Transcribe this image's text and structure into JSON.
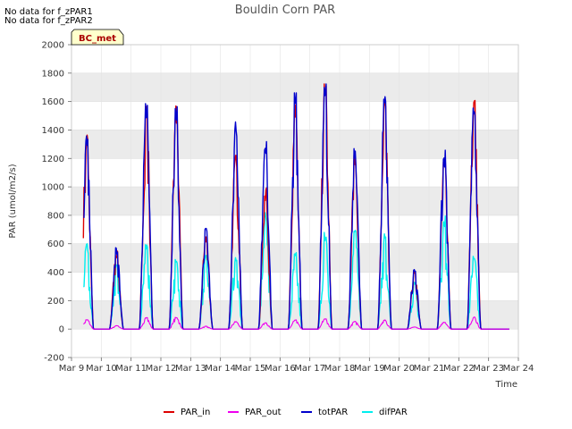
{
  "notes": [
    "No data for f_zPAR1",
    "No data for f_zPAR2"
  ],
  "badge": "BC_met",
  "colors": {
    "PAR_in": "#dd0000",
    "PAR_out": "#ee00ee",
    "totPAR": "#0000cc",
    "difPAR": "#00eeee",
    "band": "#ebebeb",
    "badge_bg": "#ffffcc",
    "badge_text": "#aa0000"
  },
  "chart_data": {
    "type": "line",
    "title": "Bouldin Corn PAR",
    "xlabel": "Time",
    "ylabel": "PAR (umol/m2/s)",
    "xlim": [
      9,
      24
    ],
    "ylim": [
      -200,
      2000
    ],
    "yticks": [
      -200,
      0,
      200,
      400,
      600,
      800,
      1000,
      1200,
      1400,
      1600,
      1800,
      2000
    ],
    "xticks": [
      {
        "value": 9,
        "label": "Mar 9"
      },
      {
        "value": 10,
        "label": "Mar 10"
      },
      {
        "value": 11,
        "label": "Mar 11"
      },
      {
        "value": 12,
        "label": "Mar 12"
      },
      {
        "value": 13,
        "label": "Mar 13"
      },
      {
        "value": 14,
        "label": "Mar 14"
      },
      {
        "value": 15,
        "label": "Mar 15"
      },
      {
        "value": 16,
        "label": "Mar 16"
      },
      {
        "value": 17,
        "label": "Mar 17"
      },
      {
        "value": 18,
        "label": "Mar 18"
      },
      {
        "value": 19,
        "label": "Mar 19"
      },
      {
        "value": 20,
        "label": "Mar 20"
      },
      {
        "value": 21,
        "label": "Mar 21"
      },
      {
        "value": 22,
        "label": "Mar 22"
      },
      {
        "value": 23,
        "label": "Mar 23"
      },
      {
        "value": 24,
        "label": "Mar 24"
      }
    ],
    "x_range_of_data": [
      9.4,
      23.7
    ],
    "series": [
      {
        "name": "PAR_in",
        "daily_peaks": [
          1390,
          550,
          1580,
          1580,
          680,
          1260,
          1000,
          1650,
          1780,
          1250,
          1640,
          420,
          1250,
          1620
        ]
      },
      {
        "name": "PAR_out",
        "daily_peaks": [
          70,
          25,
          85,
          85,
          20,
          55,
          45,
          65,
          75,
          55,
          65,
          15,
          50,
          85
        ]
      },
      {
        "name": "totPAR",
        "daily_peaks": [
          1410,
          580,
          1600,
          1600,
          710,
          1470,
          1340,
          1680,
          1800,
          1270,
          1670,
          440,
          1260,
          1650
        ]
      },
      {
        "name": "difPAR",
        "daily_peaks": [
          600,
          460,
          620,
          500,
          520,
          520,
          820,
          560,
          680,
          720,
          680,
          330,
          800,
          520
        ]
      }
    ]
  },
  "legend": {
    "position": "bottom",
    "items": [
      "PAR_in",
      "PAR_out",
      "totPAR",
      "difPAR"
    ]
  }
}
